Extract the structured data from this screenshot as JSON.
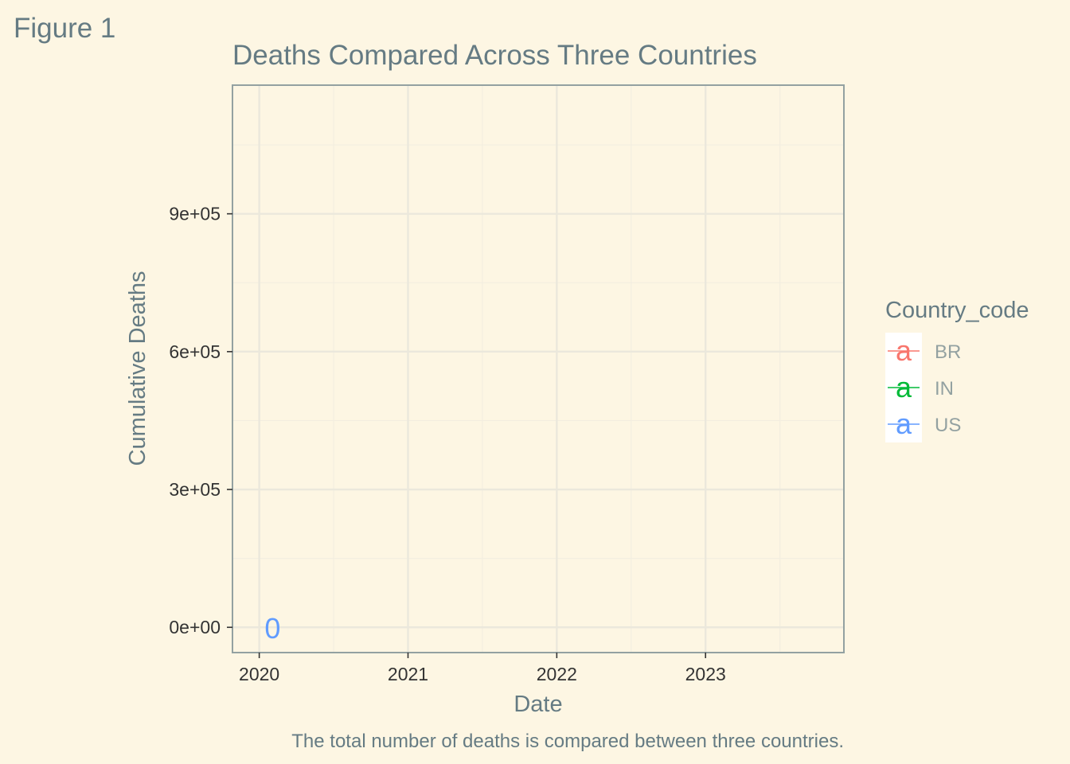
{
  "figure_label": "Figure 1",
  "chart_data": {
    "type": "line",
    "title": "Deaths Compared Across Three Countries",
    "xlabel": "Date",
    "ylabel": "Cumulative Deaths",
    "caption": "The total number of deaths is compared between three countries.",
    "x_ticks": [
      "2020",
      "2021",
      "2022",
      "2023"
    ],
    "x_tick_values": [
      2020,
      2021,
      2022,
      2023
    ],
    "xlim": [
      2019.82,
      2023.93
    ],
    "y_ticks": [
      "0e+00",
      "3e+05",
      "6e+05",
      "9e+05"
    ],
    "y_tick_values": [
      0,
      300000,
      600000,
      900000
    ],
    "ylim": [
      -55000,
      1180000
    ],
    "grid": true,
    "legend": {
      "title": "Country_code",
      "position": "right",
      "entries": [
        {
          "key": "a",
          "label": "BR",
          "color": "#f8766d"
        },
        {
          "key": "a",
          "label": "IN",
          "color": "#00ba38"
        },
        {
          "key": "a",
          "label": "US",
          "color": "#619cff"
        }
      ]
    },
    "series": [
      {
        "name": "BR",
        "color": "#f8766d",
        "points": []
      },
      {
        "name": "IN",
        "color": "#00ba38",
        "points": []
      },
      {
        "name": "US",
        "color": "#619cff",
        "points": []
      }
    ],
    "annotations": [
      {
        "text": "0",
        "x": 2020.09,
        "y": 0,
        "color": "#619cff"
      }
    ]
  },
  "colors": {
    "background": "#fdf6e3",
    "panel_border": "#93a1a1",
    "grid_major": "#ebe8dc",
    "grid_minor": "#f3eee0"
  }
}
